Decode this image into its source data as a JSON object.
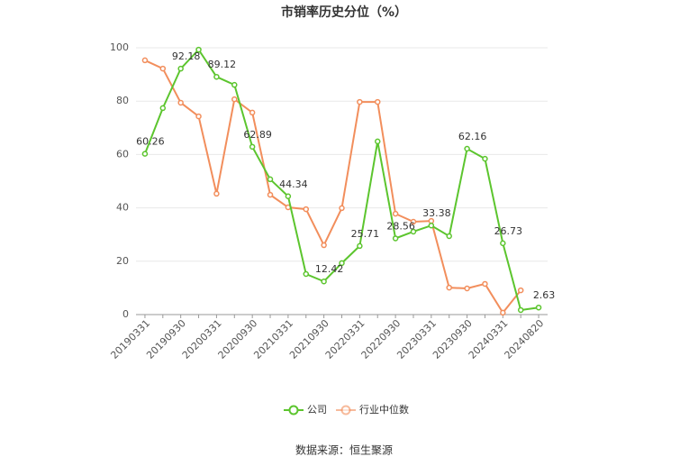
{
  "chart_data": {
    "type": "line",
    "title": "市销率历史分位（%）",
    "categories": [
      "20190331",
      null,
      "20190930",
      null,
      "20200331",
      null,
      "20200930",
      null,
      "20210331",
      null,
      "20210930",
      null,
      "20220331",
      null,
      "20220930",
      null,
      "20230331",
      null,
      "20230930",
      null,
      "20240331",
      null,
      "20240820"
    ],
    "series": [
      {
        "name": "公司",
        "color": "#5cc52e",
        "values": [
          60.26,
          77.4,
          92.18,
          99.3,
          89.12,
          86.1,
          62.89,
          50.7,
          44.34,
          15.2,
          12.42,
          19.3,
          25.71,
          64.9,
          28.56,
          31.1,
          33.38,
          29.4,
          62.16,
          58.4,
          26.73,
          1.7,
          2.63
        ],
        "value_labels": [
          "60.26",
          null,
          "92.18",
          null,
          "89.12",
          null,
          "62.89",
          null,
          "44.34",
          null,
          "12.42",
          null,
          "25.71",
          null,
          "28.56",
          null,
          "33.38",
          null,
          "62.16",
          null,
          "26.73",
          null,
          "2.63"
        ]
      },
      {
        "name": "行业中位数",
        "color": "#f28e5c",
        "values": [
          95.3,
          92.2,
          79.4,
          74.3,
          45.3,
          80.7,
          75.7,
          44.9,
          40.2,
          39.5,
          26.0,
          39.9,
          79.7,
          79.7,
          37.8,
          34.8,
          35.1,
          10.1,
          9.8,
          11.5,
          0.7,
          9.1,
          null
        ]
      }
    ],
    "ylim": [
      0,
      100
    ],
    "yticks": [
      0,
      20,
      40,
      60,
      80,
      100
    ],
    "grid": true,
    "legend": "bottom",
    "source": "数据来源：恒生聚源"
  }
}
